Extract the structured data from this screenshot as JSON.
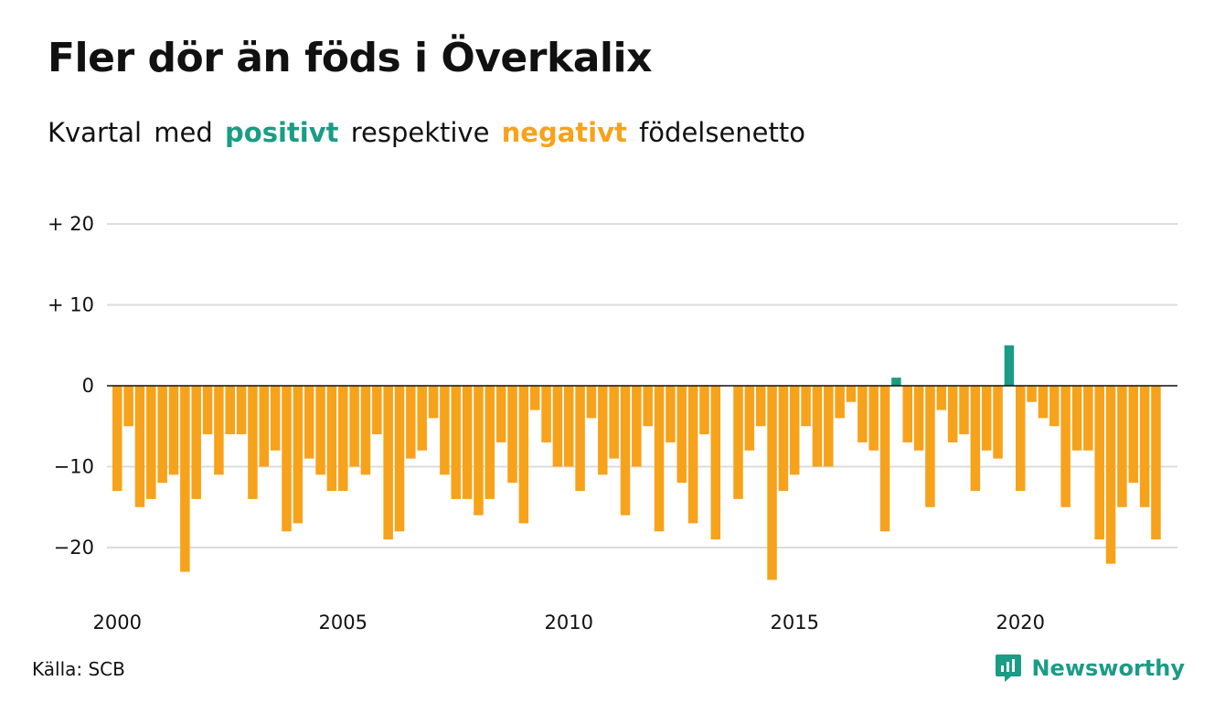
{
  "title": "Fler dör än föds i Överkalix",
  "subtitle": {
    "part1": "Kvartal",
    "part2": "med",
    "positive": "positivt",
    "part3": "respektive",
    "negative": "negativt",
    "part4": "födelsenetto"
  },
  "source": "Källa: SCB",
  "brand": {
    "name": "Newsworthy",
    "color": "#1b9c85"
  },
  "colors": {
    "positive": "#1b9c85",
    "negative": "#f7a21b",
    "grid": "#dcdcdc",
    "zero": "#111111"
  },
  "chart_data": {
    "type": "bar",
    "x_start": "2000 Q1",
    "frequency": "quarterly",
    "xticks": [
      "2000",
      "2005",
      "2010",
      "2015",
      "2020"
    ],
    "yticks": [
      {
        "value": 20,
        "label": "+ 20"
      },
      {
        "value": 10,
        "label": "+ 10"
      },
      {
        "value": 0,
        "label": "0"
      },
      {
        "value": -10,
        "label": "−10"
      },
      {
        "value": -20,
        "label": "−20"
      }
    ],
    "ylim": [
      -25,
      20
    ],
    "grid": true,
    "values": [
      -13,
      -5,
      -15,
      -14,
      -12,
      -11,
      -23,
      -14,
      -6,
      -11,
      -6,
      -6,
      -14,
      -10,
      -8,
      -18,
      -17,
      -9,
      -11,
      -13,
      -13,
      -10,
      -11,
      -6,
      -19,
      -18,
      -9,
      -8,
      -4,
      -11,
      -14,
      -14,
      -16,
      -14,
      -7,
      -12,
      -17,
      -3,
      -7,
      -10,
      -10,
      -13,
      -4,
      -11,
      -9,
      -16,
      -10,
      -5,
      -18,
      -7,
      -12,
      -17,
      -6,
      -19,
      0,
      -14,
      -8,
      -5,
      -24,
      -13,
      -11,
      -5,
      -10,
      -10,
      -4,
      -2,
      -7,
      -8,
      -18,
      1,
      -7,
      -8,
      -15,
      -3,
      -7,
      -6,
      -13,
      -8,
      -9,
      5,
      -13,
      -2,
      -4,
      -5,
      -15,
      -8,
      -8,
      -19,
      -22,
      -15,
      -12,
      -15,
      -19
    ]
  }
}
